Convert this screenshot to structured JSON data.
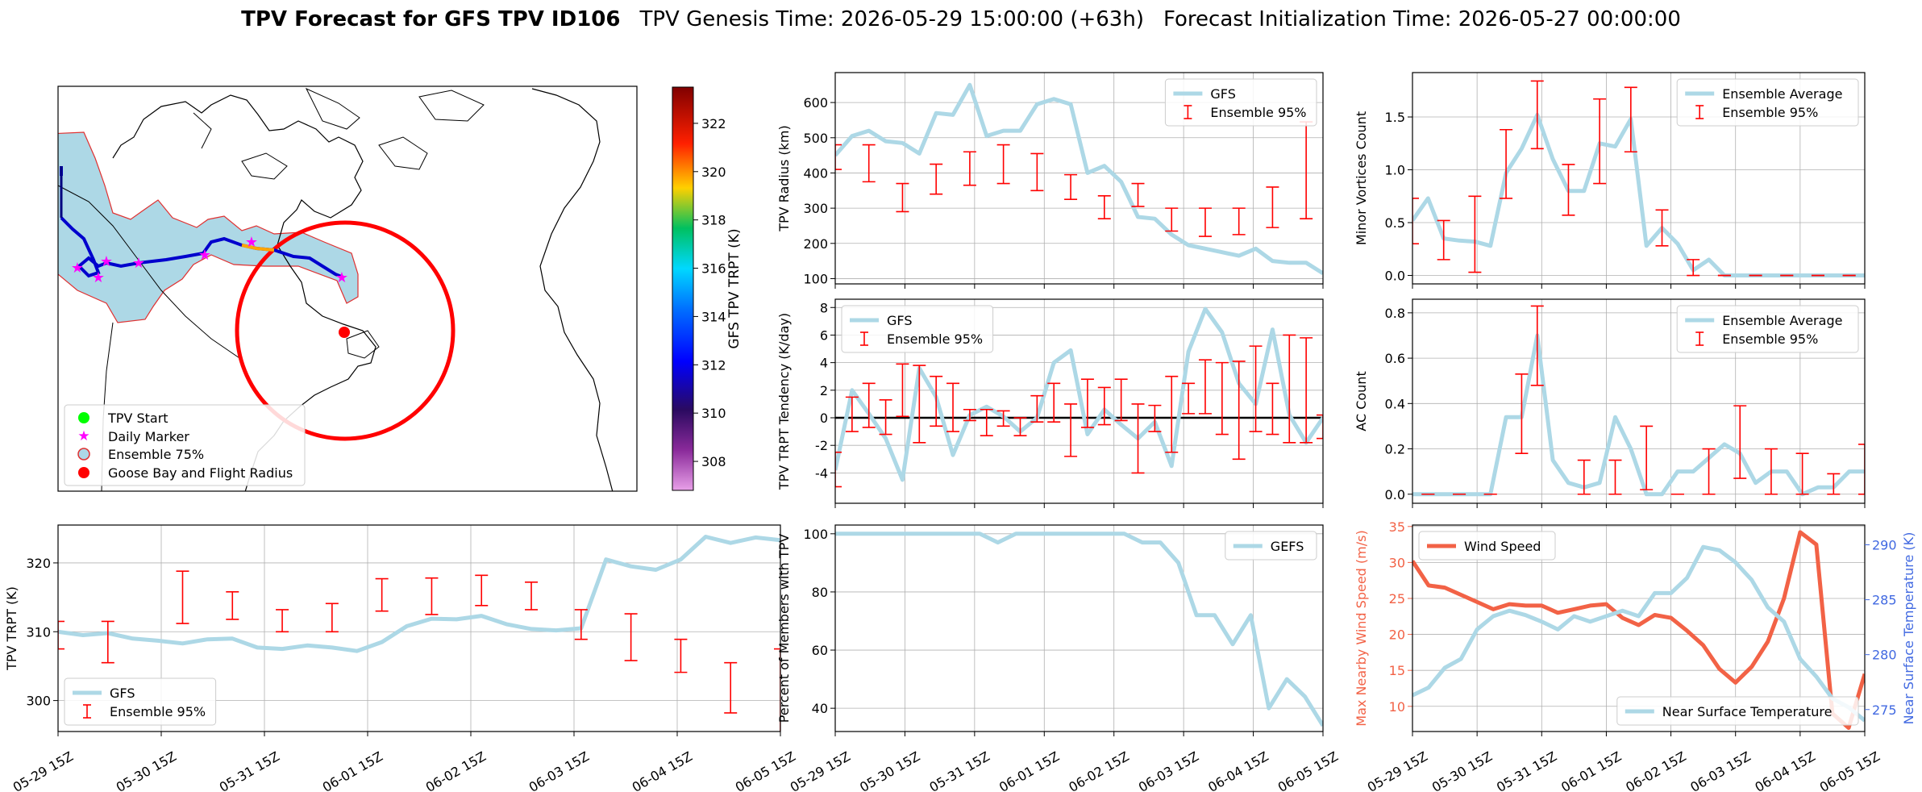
{
  "title": {
    "bold": "TPV Forecast for GFS TPV ID106",
    "genesis": "TPV Genesis Time: 2026-05-29 15:00:00 (+63h)",
    "init": "Forecast Initialization Time: 2026-05-27 00:00:00"
  },
  "colors": {
    "gfs": "#add8e6",
    "ensemble": "#ff0000",
    "wind": "#f26246",
    "temp_axis": "#4169e1",
    "wind_axis": "#f26246",
    "land_fill": "#add8e6",
    "marker": "#ff00ff",
    "start": "#00ff00"
  },
  "map": {
    "legend": [
      "TPV Start",
      "Daily Marker",
      "Ensemble 75%",
      "Goose Bay and Flight Radius"
    ],
    "colorbar_label": "GFS TPV TRPT (K)",
    "colorbar_ticks": [
      "308",
      "310",
      "312",
      "314",
      "316",
      "318",
      "320",
      "322"
    ],
    "colorbar_range": [
      306.8,
      323.5
    ]
  },
  "time_ticks": [
    "05-29 15Z",
    "05-30 15Z",
    "05-31 15Z",
    "06-01 15Z",
    "06-02 15Z",
    "06-03 15Z",
    "06-04 15Z",
    "06-05 15Z"
  ],
  "chart_data": [
    {
      "id": "radius",
      "type": "line",
      "ylabel": "TPV Radius (km)",
      "ylim": [
        85,
        685
      ],
      "yticks": [
        100,
        200,
        300,
        400,
        500,
        600
      ],
      "legend": [
        "GFS",
        "Ensemble 95%"
      ],
      "legend_pos": "top-right",
      "series": [
        {
          "name": "GFS",
          "values": [
            450,
            505,
            520,
            490,
            485,
            455,
            570,
            565,
            650,
            505,
            520,
            520,
            595,
            610,
            595,
            400,
            420,
            375,
            275,
            270,
            225,
            195,
            185,
            175,
            165,
            185,
            150,
            145,
            145,
            115
          ]
        }
      ],
      "errorbars": [
        {
          "x": 0,
          "lo": 410,
          "hi": 480
        },
        {
          "x": 2,
          "lo": 375,
          "hi": 480
        },
        {
          "x": 4,
          "lo": 290,
          "hi": 370
        },
        {
          "x": 6,
          "lo": 340,
          "hi": 425
        },
        {
          "x": 8,
          "lo": 365,
          "hi": 460
        },
        {
          "x": 10,
          "lo": 370,
          "hi": 480
        },
        {
          "x": 12,
          "lo": 350,
          "hi": 455
        },
        {
          "x": 14,
          "lo": 325,
          "hi": 395
        },
        {
          "x": 16,
          "lo": 270,
          "hi": 335
        },
        {
          "x": 18,
          "lo": 305,
          "hi": 370
        },
        {
          "x": 20,
          "lo": 235,
          "hi": 300
        },
        {
          "x": 22,
          "lo": 220,
          "hi": 300
        },
        {
          "x": 24,
          "lo": 225,
          "hi": 300
        },
        {
          "x": 26,
          "lo": 245,
          "hi": 360
        },
        {
          "x": 28,
          "lo": 270,
          "hi": 545
        }
      ]
    },
    {
      "id": "minor",
      "type": "line",
      "ylabel": "Minor Vortices Count",
      "ylim": [
        -0.08,
        1.92
      ],
      "yticks": [
        0.0,
        0.5,
        1.0,
        1.5
      ],
      "legend": [
        "Ensemble Average",
        "Ensemble 95%"
      ],
      "legend_pos": "top-right",
      "series": [
        {
          "name": "Ensemble Average",
          "values": [
            0.52,
            0.73,
            0.35,
            0.33,
            0.32,
            0.28,
            0.97,
            1.2,
            1.52,
            1.1,
            0.8,
            0.8,
            1.25,
            1.22,
            1.48,
            0.28,
            0.45,
            0.3,
            0.05,
            0.15,
            0,
            0,
            0,
            0,
            0,
            0,
            0,
            0,
            0,
            0
          ]
        }
      ],
      "errorbars": [
        {
          "x": 0,
          "lo": 0.3,
          "hi": 0.73
        },
        {
          "x": 2,
          "lo": 0.15,
          "hi": 0.52
        },
        {
          "x": 4,
          "lo": 0.03,
          "hi": 0.75
        },
        {
          "x": 6,
          "lo": 0.73,
          "hi": 1.38
        },
        {
          "x": 8,
          "lo": 1.2,
          "hi": 1.84
        },
        {
          "x": 10,
          "lo": 0.57,
          "hi": 1.05
        },
        {
          "x": 12,
          "lo": 0.87,
          "hi": 1.67
        },
        {
          "x": 14,
          "lo": 1.17,
          "hi": 1.78
        },
        {
          "x": 16,
          "lo": 0.28,
          "hi": 0.62
        },
        {
          "x": 18,
          "lo": 0.0,
          "hi": 0.15
        },
        {
          "x": 20,
          "lo": 0,
          "hi": 0
        },
        {
          "x": 22,
          "lo": 0,
          "hi": 0
        },
        {
          "x": 24,
          "lo": 0,
          "hi": 0
        },
        {
          "x": 26,
          "lo": 0,
          "hi": 0
        },
        {
          "x": 28,
          "lo": 0,
          "hi": 0
        }
      ]
    },
    {
      "id": "tendency",
      "type": "line",
      "ylabel": "TPV TRPT Tendency (K/day)",
      "ylim": [
        -6.2,
        8.6
      ],
      "yticks": [
        -4,
        -2,
        0,
        2,
        4,
        6,
        8
      ],
      "zero_line": true,
      "legend": [
        "GFS",
        "Ensemble 95%"
      ],
      "legend_pos": "top-left",
      "series": [
        {
          "name": "GFS",
          "values": [
            -3.8,
            2.0,
            0.3,
            -1.5,
            -4.5,
            3.6,
            1.5,
            -2.7,
            0.2,
            0.8,
            0.1,
            -1.0,
            0.0,
            4.0,
            4.9,
            -1.2,
            0.6,
            -0.5,
            -1.5,
            -0.3,
            -3.5,
            4.8,
            7.9,
            6.2,
            2.5,
            1.0,
            6.4,
            0.2,
            -1.8,
            0.0
          ]
        }
      ],
      "errorbars": [
        {
          "x": 0,
          "lo": -5.0,
          "hi": -2.5
        },
        {
          "x": 1,
          "lo": -1.0,
          "hi": 1.5
        },
        {
          "x": 2,
          "lo": -0.7,
          "hi": 2.5
        },
        {
          "x": 3,
          "lo": -1.2,
          "hi": 1.3
        },
        {
          "x": 4,
          "lo": 0.1,
          "hi": 3.9
        },
        {
          "x": 5,
          "lo": -1.8,
          "hi": 3.8
        },
        {
          "x": 6,
          "lo": -0.6,
          "hi": 3.0
        },
        {
          "x": 7,
          "lo": -1.0,
          "hi": 2.5
        },
        {
          "x": 8,
          "lo": -0.2,
          "hi": 0.6
        },
        {
          "x": 9,
          "lo": -1.3,
          "hi": 0.6
        },
        {
          "x": 10,
          "lo": -0.6,
          "hi": 0.5
        },
        {
          "x": 11,
          "lo": -1.3,
          "hi": 0.0
        },
        {
          "x": 12,
          "lo": -0.3,
          "hi": 1.6
        },
        {
          "x": 13,
          "lo": -0.3,
          "hi": 2.5
        },
        {
          "x": 14,
          "lo": -2.8,
          "hi": 1.0
        },
        {
          "x": 15,
          "lo": -0.7,
          "hi": 2.8
        },
        {
          "x": 16,
          "lo": -0.5,
          "hi": 2.2
        },
        {
          "x": 17,
          "lo": -0.2,
          "hi": 2.8
        },
        {
          "x": 18,
          "lo": -4.0,
          "hi": 1.0
        },
        {
          "x": 19,
          "lo": -1.0,
          "hi": 0.9
        },
        {
          "x": 20,
          "lo": -2.5,
          "hi": 3.0
        },
        {
          "x": 21,
          "lo": 0.3,
          "hi": 2.5
        },
        {
          "x": 22,
          "lo": 0.3,
          "hi": 4.2
        },
        {
          "x": 23,
          "lo": -1.2,
          "hi": 4.0
        },
        {
          "x": 24,
          "lo": -3.0,
          "hi": 4.1
        },
        {
          "x": 25,
          "lo": -1.0,
          "hi": 5.2
        },
        {
          "x": 26,
          "lo": -1.2,
          "hi": 2.5
        },
        {
          "x": 27,
          "lo": -1.8,
          "hi": 6.0
        },
        {
          "x": 28,
          "lo": -1.8,
          "hi": 5.8
        },
        {
          "x": 29,
          "lo": -1.5,
          "hi": 0.2
        }
      ]
    },
    {
      "id": "ac",
      "type": "line",
      "ylabel": "AC Count",
      "ylim": [
        -0.04,
        0.86
      ],
      "yticks": [
        0.0,
        0.2,
        0.4,
        0.6,
        0.8
      ],
      "legend": [
        "Ensemble Average",
        "Ensemble 95%"
      ],
      "legend_pos": "top-right",
      "series": [
        {
          "name": "Ensemble Average",
          "values": [
            0,
            0,
            0,
            0,
            0,
            0,
            0.34,
            0.34,
            0.7,
            0.15,
            0.05,
            0.03,
            0.05,
            0.34,
            0.2,
            0.0,
            0.0,
            0.1,
            0.1,
            0.16,
            0.22,
            0.18,
            0.05,
            0.1,
            0.1,
            0.0,
            0.03,
            0.03,
            0.1,
            0.1
          ]
        }
      ],
      "errorbars": [
        {
          "x": 1,
          "lo": 0,
          "hi": 0
        },
        {
          "x": 3,
          "lo": 0,
          "hi": 0
        },
        {
          "x": 5,
          "lo": 0,
          "hi": 0
        },
        {
          "x": 7,
          "lo": 0.18,
          "hi": 0.53
        },
        {
          "x": 8,
          "lo": 0.48,
          "hi": 0.83
        },
        {
          "x": 11,
          "lo": 0.0,
          "hi": 0.15
        },
        {
          "x": 13,
          "lo": 0.0,
          "hi": 0.15
        },
        {
          "x": 15,
          "lo": 0.02,
          "hi": 0.3
        },
        {
          "x": 17,
          "lo": 0.0,
          "hi": 0.0
        },
        {
          "x": 19,
          "lo": 0.0,
          "hi": 0.2
        },
        {
          "x": 21,
          "lo": 0.07,
          "hi": 0.39
        },
        {
          "x": 23,
          "lo": 0.0,
          "hi": 0.2
        },
        {
          "x": 25,
          "lo": 0.0,
          "hi": 0.18
        },
        {
          "x": 27,
          "lo": 0.0,
          "hi": 0.09
        },
        {
          "x": 29,
          "lo": 0.0,
          "hi": 0.22
        }
      ]
    },
    {
      "id": "trpt",
      "type": "line",
      "ylabel": "TPV TRPT (K)",
      "ylim": [
        295.5,
        325.5
      ],
      "yticks": [
        300,
        310,
        320
      ],
      "legend": [
        "GFS",
        "Ensemble 95%"
      ],
      "legend_pos": "bottom-left",
      "series": [
        {
          "name": "GFS",
          "values": [
            310.0,
            309.5,
            309.8,
            309.0,
            308.7,
            308.3,
            308.9,
            309.0,
            307.7,
            307.5,
            308.0,
            307.7,
            307.2,
            308.5,
            310.8,
            311.9,
            311.8,
            312.3,
            311.1,
            310.4,
            310.2,
            310.5,
            320.5,
            319.5,
            319.0,
            320.5,
            323.8,
            322.9,
            323.7,
            323.3
          ]
        }
      ],
      "errorbars": [
        {
          "x": 0,
          "lo": 307.5,
          "hi": 311.5
        },
        {
          "x": 2,
          "lo": 305.5,
          "hi": 311.5
        },
        {
          "x": 5,
          "lo": 311.2,
          "hi": 318.8
        },
        {
          "x": 7,
          "lo": 311.8,
          "hi": 315.8
        },
        {
          "x": 9,
          "lo": 310.0,
          "hi": 313.2
        },
        {
          "x": 11,
          "lo": 310.0,
          "hi": 314.1
        },
        {
          "x": 13,
          "lo": 313.0,
          "hi": 317.7
        },
        {
          "x": 15,
          "lo": 312.5,
          "hi": 317.8
        },
        {
          "x": 17,
          "lo": 313.8,
          "hi": 318.2
        },
        {
          "x": 19,
          "lo": 313.2,
          "hi": 317.2
        },
        {
          "x": 21,
          "lo": 308.9,
          "hi": 313.2
        },
        {
          "x": 23,
          "lo": 305.8,
          "hi": 312.6
        },
        {
          "x": 25,
          "lo": 304.1,
          "hi": 308.9
        },
        {
          "x": 27,
          "lo": 298.2,
          "hi": 305.5
        },
        {
          "x": 29,
          "lo": 292.0,
          "hi": 307.5
        }
      ]
    },
    {
      "id": "members",
      "type": "line",
      "ylabel": "Percent of Members with TPV",
      "ylim": [
        32,
        103
      ],
      "yticks": [
        40,
        60,
        80,
        100
      ],
      "legend": [
        "GEFS"
      ],
      "legend_pos": "top-right",
      "series": [
        {
          "name": "GEFS",
          "values": [
            100,
            100,
            100,
            100,
            100,
            100,
            100,
            100,
            100,
            97,
            100,
            100,
            100,
            100,
            100,
            100,
            100,
            97,
            97,
            90,
            72,
            72,
            62,
            72,
            40,
            50,
            44,
            34
          ]
        }
      ]
    },
    {
      "id": "wind",
      "type": "line",
      "ylabel": "Max Nearby Wind Speed (m/s)",
      "ylabel2": "Near Surface Temperature (K)",
      "ylim": [
        6.5,
        35.2
      ],
      "yticks": [
        10,
        15,
        20,
        25,
        30,
        35
      ],
      "ylim2": [
        273.0,
        291.8
      ],
      "yticks2": [
        275,
        280,
        285,
        290
      ],
      "legend": [
        "Wind Speed"
      ],
      "legend2": [
        "Near Surface Temperature"
      ],
      "series": [
        {
          "name": "Wind Speed",
          "values": [
            30.2,
            26.8,
            26.5,
            25.5,
            24.5,
            23.5,
            24.2,
            24.0,
            24.0,
            23.0,
            23.5,
            24.0,
            24.2,
            22.3,
            21.3,
            22.7,
            22.3,
            20.5,
            18.5,
            15.2,
            13.3,
            15.5,
            19.0,
            25.0,
            34.2,
            32.5,
            9.0,
            7.0,
            14.5
          ]
        },
        {
          "name": "Near Surface Temperature",
          "axis": "right",
          "values": [
            276.3,
            277.0,
            278.8,
            279.6,
            282.3,
            283.5,
            284.0,
            283.6,
            283.0,
            282.3,
            283.5,
            283.0,
            283.5,
            284.0,
            283.5,
            285.6,
            285.6,
            287.0,
            289.8,
            289.5,
            288.4,
            286.8,
            284.3,
            283.0,
            279.6,
            278.0,
            276.0,
            275.2,
            274.0
          ]
        }
      ]
    }
  ]
}
